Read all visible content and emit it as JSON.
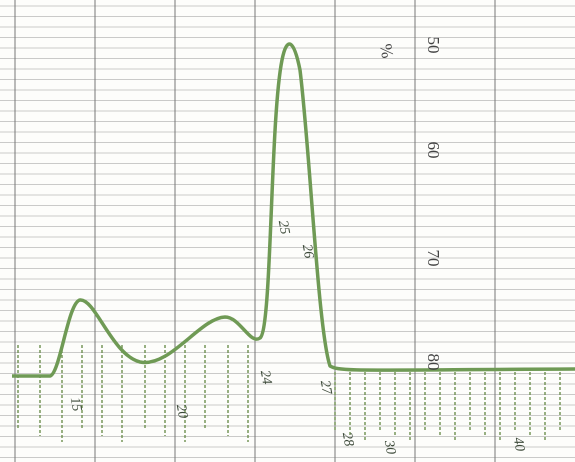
{
  "scale": {
    "unit": "%",
    "labels": [
      "50",
      "60",
      "70",
      "80"
    ]
  },
  "annotations": [
    "15",
    "20",
    "24",
    "25",
    "26",
    "27",
    "28",
    "30",
    "40"
  ]
}
